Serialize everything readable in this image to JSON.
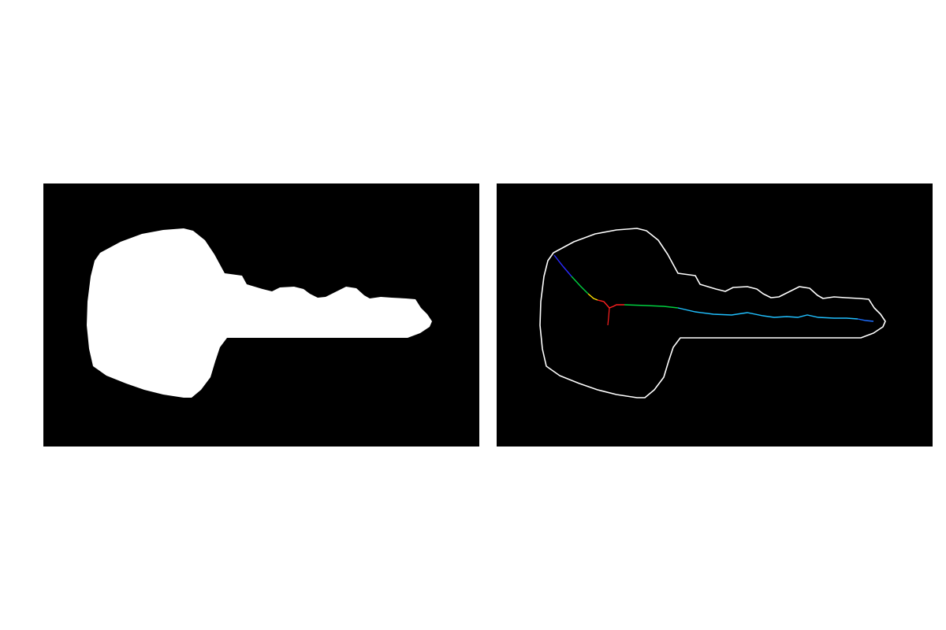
{
  "figure": {
    "panels": [
      {
        "name": "binary-mask",
        "background_color": "#000000",
        "foreground_color": "#ffffff"
      },
      {
        "name": "contour-and-skeleton",
        "background_color": "#000000",
        "contour_color": "#ffffff",
        "skeleton_colors": [
          "#2a2aff",
          "#00d040",
          "#ffe000",
          "#ff2020",
          "#20c0ff",
          "#1e6eff"
        ]
      }
    ]
  }
}
